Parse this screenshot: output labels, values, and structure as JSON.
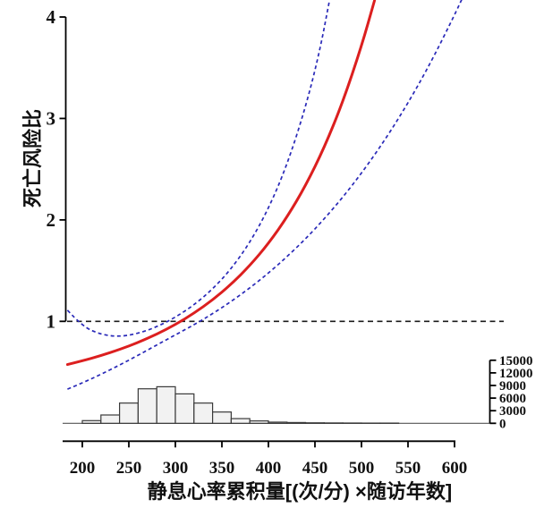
{
  "chart_data": {
    "type": "line",
    "title": "",
    "xlabel": "静息心率累积量[(次/分) ×随访年数]",
    "ylabel": "死亡风险比",
    "x_ticks": [
      200,
      250,
      300,
      350,
      400,
      450,
      500,
      550,
      600
    ],
    "y_ticks": [
      1,
      2,
      3,
      4
    ],
    "y2_ticks": [
      0,
      3000,
      6000,
      9000,
      12000,
      15000
    ],
    "xlim": [
      184,
      650
    ],
    "ylim": [
      1,
      4
    ],
    "y2lim": [
      0,
      15000
    ],
    "grid": false,
    "legend": "none",
    "reference_line_y": 1,
    "reference_line_color": "#1b1b1b",
    "colors": {
      "estimate": "#dc1f1f",
      "ci": "#2929b8",
      "axis": "#000000"
    },
    "series": [
      {
        "role": "estimate",
        "style": "solid",
        "color": "#dc1f1f",
        "points": [
          [
            184,
            0.574
          ],
          [
            200,
            0.61
          ],
          [
            220,
            0.662
          ],
          [
            240,
            0.722
          ],
          [
            260,
            0.792
          ],
          [
            280,
            0.873
          ],
          [
            300,
            0.968
          ],
          [
            320,
            1.08
          ],
          [
            340,
            1.211
          ],
          [
            360,
            1.366
          ],
          [
            380,
            1.549
          ],
          [
            400,
            1.767
          ],
          [
            420,
            2.027
          ],
          [
            440,
            2.338
          ],
          [
            460,
            2.712
          ],
          [
            480,
            3.163
          ],
          [
            500,
            3.71
          ],
          [
            514,
            4.163
          ]
        ]
      },
      {
        "role": "upper_ci",
        "style": "dashed",
        "color": "#2929b8",
        "points": [
          [
            184,
            1.11
          ],
          [
            200,
            0.95
          ],
          [
            220,
            0.87
          ],
          [
            240,
            0.848
          ],
          [
            260,
            0.88
          ],
          [
            280,
            0.945
          ],
          [
            300,
            1.04
          ],
          [
            320,
            1.161
          ],
          [
            340,
            1.317
          ],
          [
            360,
            1.517
          ],
          [
            380,
            1.775
          ],
          [
            400,
            2.108
          ],
          [
            420,
            2.541
          ],
          [
            440,
            3.111
          ],
          [
            455,
            3.656
          ],
          [
            466,
            4.18
          ]
        ]
      },
      {
        "role": "lower_ci",
        "style": "dashed",
        "color": "#2929b8",
        "points": [
          [
            184,
            0.332
          ],
          [
            200,
            0.393
          ],
          [
            220,
            0.477
          ],
          [
            240,
            0.569
          ],
          [
            260,
            0.666
          ],
          [
            280,
            0.767
          ],
          [
            300,
            0.867
          ],
          [
            320,
            0.966
          ],
          [
            340,
            1.075
          ],
          [
            360,
            1.196
          ],
          [
            380,
            1.329
          ],
          [
            400,
            1.475
          ],
          [
            420,
            1.637
          ],
          [
            440,
            1.814
          ],
          [
            460,
            2.01
          ],
          [
            480,
            2.224
          ],
          [
            500,
            2.46
          ],
          [
            520,
            2.718
          ],
          [
            540,
            3.001
          ],
          [
            560,
            3.31
          ],
          [
            580,
            3.65
          ],
          [
            600,
            4.02
          ],
          [
            609,
            4.198
          ]
        ]
      }
    ],
    "histogram": {
      "bin_start": 200,
      "bin_width": 20,
      "counts": [
        640,
        1980,
        4820,
        8210,
        8700,
        7000,
        4820,
        2690,
        1120,
        570,
        280,
        190,
        120,
        90,
        70,
        50,
        40
      ],
      "fill": "#f2f2f2",
      "stroke": "#3a3a3a",
      "axis_side": "right"
    }
  }
}
